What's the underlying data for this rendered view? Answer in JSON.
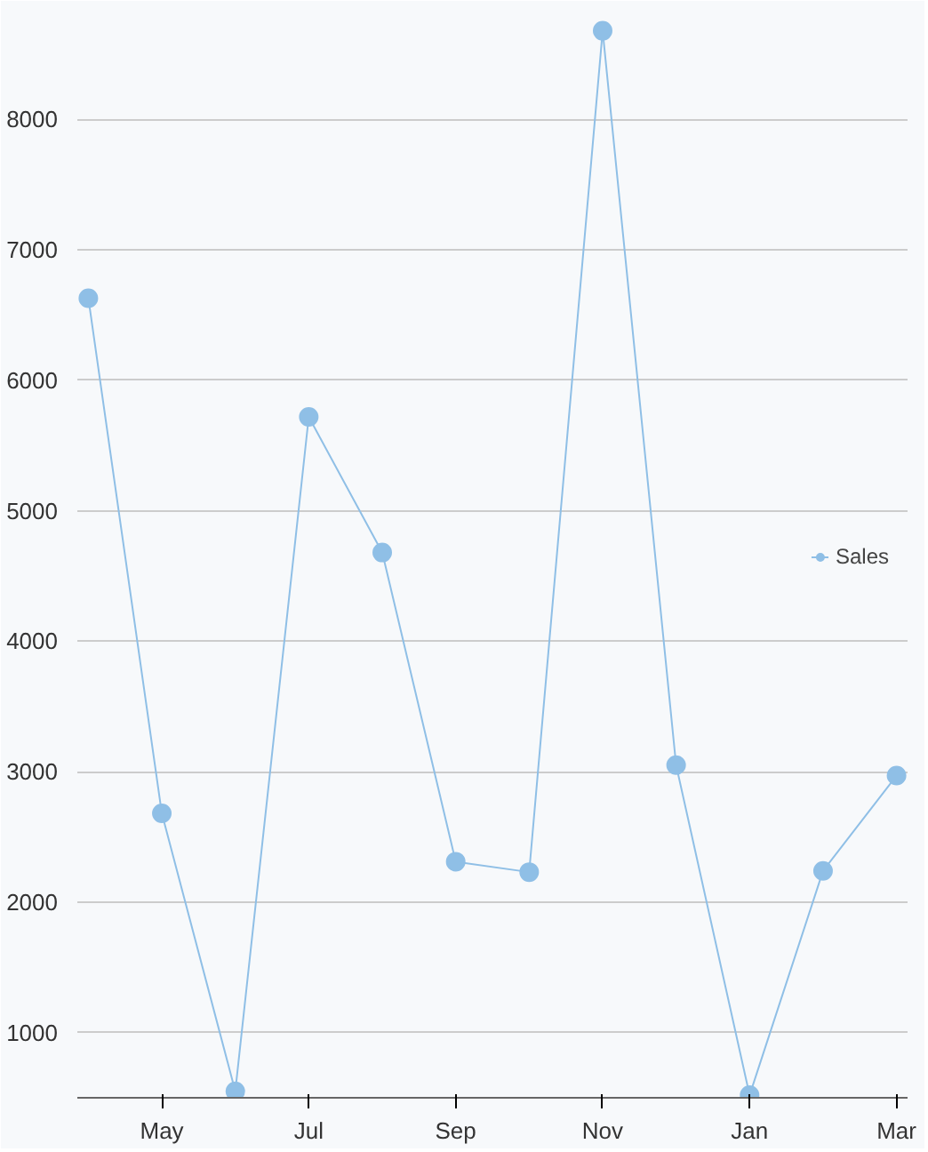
{
  "chart_data": {
    "type": "line",
    "categories": [
      null,
      "May",
      null,
      "Jul",
      null,
      "Sep",
      null,
      "Nov",
      null,
      "Jan",
      null,
      "Mar"
    ],
    "series": [
      {
        "name": "Sales",
        "color": "#8fbfe6",
        "values": [
          6630,
          2680,
          550,
          5720,
          4680,
          2310,
          2230,
          8680,
          3050,
          520,
          2240,
          2970
        ]
      }
    ],
    "ylim": [
      500,
      8800
    ],
    "yticks": [
      1000,
      2000,
      3000,
      4000,
      5000,
      6000,
      7000,
      8000
    ],
    "grid": "y",
    "legend": "right",
    "marker": "circle",
    "line_style": "solid"
  }
}
